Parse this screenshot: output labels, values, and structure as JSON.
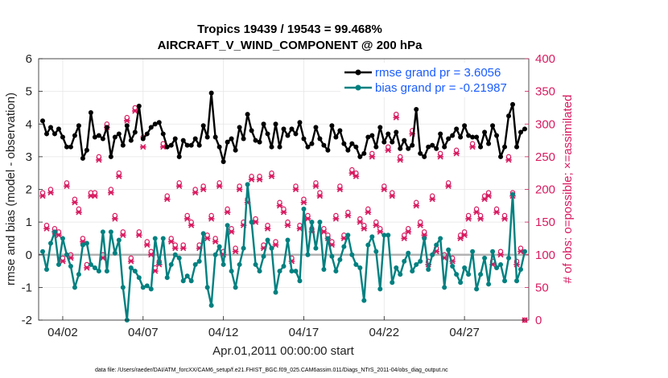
{
  "chart_data": {
    "type": "line",
    "title": "Tropics 19439 / 19543 = 99.468%",
    "subtitle": "AIRCRAFT_V_WIND_COMPONENT @ 200 hPa",
    "xlabel": "Apr.01,2011 00:00:00 start",
    "ylabel": "rmse and bias (model - observation)",
    "ylabel_right": "# of obs: o=possible; ×=assimilated",
    "ylim": [
      -2,
      6
    ],
    "ylim_right": [
      0,
      400
    ],
    "xlim": [
      0.5,
      31.0
    ],
    "yticks": [
      "-2",
      "-1",
      "0",
      "1",
      "2",
      "3",
      "4",
      "5",
      "6"
    ],
    "yticks_right": [
      "0",
      "50",
      "100",
      "150",
      "200",
      "250",
      "300",
      "350",
      "400"
    ],
    "xticks": [
      {
        "value": 2,
        "label": "04/02"
      },
      {
        "value": 7,
        "label": "04/07"
      },
      {
        "value": 12,
        "label": "04/12"
      },
      {
        "value": 17,
        "label": "04/17"
      },
      {
        "value": 22,
        "label": "04/22"
      },
      {
        "value": 27,
        "label": "04/27"
      }
    ],
    "legend": {
      "placement": "top-right",
      "entries": [
        "rmse grand pr = 3.6056",
        "bias grand pr = -0.21987"
      ]
    },
    "footer": "data file: /Users/raeder/DAI/ATM_forcXX/CAM6_setup/f.e21.FHIST_BGC.f09_025.CAM6assim.011/Diags_NTrS_2011-04/obs_diag_output.nc",
    "colors": {
      "rmse": "#000000",
      "bias": "#008080",
      "obs": "#d81b60",
      "zero_line": "#b3b3b3"
    },
    "series": [
      {
        "name": "rmse",
        "x": [
          0.75,
          1.0,
          1.25,
          1.5,
          1.75,
          2.0,
          2.25,
          2.5,
          2.75,
          3.0,
          3.25,
          3.5,
          3.75,
          4.0,
          4.25,
          4.5,
          4.75,
          5.0,
          5.25,
          5.5,
          5.75,
          6.0,
          6.25,
          6.5,
          6.75,
          7.0,
          7.25,
          7.5,
          7.75,
          8.0,
          8.25,
          8.5,
          8.75,
          9.0,
          9.25,
          9.5,
          9.75,
          10.0,
          10.25,
          10.5,
          10.75,
          11.0,
          11.25,
          11.5,
          11.75,
          12.0,
          12.25,
          12.5,
          12.75,
          13.0,
          13.25,
          13.5,
          13.75,
          14.0,
          14.25,
          14.5,
          14.75,
          15.0,
          15.25,
          15.5,
          15.75,
          16.0,
          16.25,
          16.5,
          16.75,
          17.0,
          17.25,
          17.5,
          17.75,
          18.0,
          18.25,
          18.5,
          18.75,
          19.0,
          19.25,
          19.5,
          19.75,
          20.0,
          20.25,
          20.5,
          20.75,
          21.0,
          21.25,
          21.5,
          21.75,
          22.0,
          22.25,
          22.5,
          22.75,
          23.0,
          23.25,
          23.5,
          23.75,
          24.0,
          24.25,
          24.5,
          24.75,
          25.0,
          25.25,
          25.5,
          25.75,
          26.0,
          26.25,
          26.5,
          26.75,
          27.0,
          27.25,
          27.5,
          27.75,
          28.0,
          28.25,
          28.5,
          28.75,
          29.0,
          29.25,
          29.5,
          29.75,
          30.0,
          30.25,
          30.5,
          30.75
        ],
        "values": [
          4.1,
          3.7,
          3.9,
          3.7,
          3.85,
          3.6,
          3.3,
          3.3,
          3.65,
          3.95,
          2.95,
          3.2,
          4.35,
          3.6,
          3.65,
          3.55,
          3.9,
          3.0,
          3.6,
          3.7,
          3.35,
          3.95,
          3.5,
          3.75,
          4.55,
          3.55,
          3.7,
          3.9,
          4.0,
          4.05,
          3.7,
          3.3,
          3.35,
          3.55,
          3.0,
          3.5,
          3.35,
          3.35,
          3.55,
          3.35,
          3.95,
          3.6,
          4.95,
          3.6,
          3.3,
          2.85,
          3.45,
          3.55,
          3.2,
          3.9,
          3.55,
          4.3,
          3.8,
          3.5,
          3.45,
          4.0,
          3.7,
          3.3,
          4.0,
          3.3,
          3.85,
          3.65,
          3.85,
          3.7,
          4.05,
          3.55,
          3.3,
          3.4,
          3.9,
          3.55,
          3.35,
          3.2,
          3.95,
          3.6,
          3.8,
          3.4,
          3.2,
          3.4,
          3.3,
          3.0,
          3.1,
          3.6,
          3.65,
          3.3,
          3.9,
          3.45,
          3.7,
          3.45,
          3.75,
          3.25,
          3.5,
          3.25,
          3.35,
          4.45,
          3.1,
          3.0,
          3.3,
          3.35,
          3.25,
          3.7,
          3.3,
          3.55,
          3.65,
          3.85,
          3.6,
          3.95,
          3.65,
          3.6,
          3.6,
          3.3,
          3.75,
          3.4,
          3.95,
          3.65,
          3.0,
          3.3,
          4.25,
          4.6,
          3.3,
          3.75,
          3.85
        ]
      },
      {
        "name": "bias",
        "x": [
          0.75,
          1.0,
          1.25,
          1.5,
          1.75,
          2.0,
          2.25,
          2.5,
          2.75,
          3.0,
          3.25,
          3.5,
          3.75,
          4.0,
          4.25,
          4.5,
          4.75,
          5.0,
          5.25,
          5.5,
          5.75,
          6.0,
          6.25,
          6.5,
          6.75,
          7.0,
          7.25,
          7.5,
          7.75,
          8.0,
          8.25,
          8.5,
          8.75,
          9.0,
          9.25,
          9.5,
          9.75,
          10.0,
          10.25,
          10.5,
          10.75,
          11.0,
          11.25,
          11.5,
          11.75,
          12.0,
          12.25,
          12.5,
          12.75,
          13.0,
          13.25,
          13.5,
          13.75,
          14.0,
          14.25,
          14.5,
          14.75,
          15.0,
          15.25,
          15.5,
          15.75,
          16.0,
          16.25,
          16.5,
          16.75,
          17.0,
          17.25,
          17.5,
          17.75,
          18.0,
          18.25,
          18.5,
          18.75,
          19.0,
          19.25,
          19.5,
          19.75,
          20.0,
          20.25,
          20.5,
          20.75,
          21.0,
          21.25,
          21.5,
          21.75,
          22.0,
          22.25,
          22.5,
          22.75,
          23.0,
          23.25,
          23.5,
          23.75,
          24.0,
          24.25,
          24.5,
          24.75,
          25.0,
          25.25,
          25.5,
          25.75,
          26.0,
          26.25,
          26.5,
          26.75,
          27.0,
          27.25,
          27.5,
          27.75,
          28.0,
          28.25,
          28.5,
          28.75,
          29.0,
          29.25,
          29.5,
          29.75,
          30.0,
          30.25,
          30.5,
          30.75
        ],
        "values": [
          0.1,
          -0.45,
          0.35,
          0.7,
          -0.3,
          0.5,
          0.0,
          -0.35,
          -1.0,
          -0.6,
          0.3,
          0.35,
          -0.3,
          -0.4,
          -0.5,
          0.7,
          -0.5,
          0.7,
          0.05,
          0.45,
          -1.0,
          -2.0,
          -0.4,
          -0.5,
          -0.7,
          -1.0,
          -0.95,
          -1.05,
          0.5,
          -0.25,
          0.5,
          -0.7,
          -0.3,
          0.0,
          -0.1,
          -0.8,
          -0.65,
          -0.8,
          -0.3,
          -0.2,
          0.65,
          -1.0,
          -1.55,
          0.0,
          0.25,
          -0.3,
          0.9,
          -0.5,
          -1.0,
          -0.3,
          0.2,
          2.15,
          1.0,
          -0.3,
          -0.5,
          -0.05,
          0.45,
          0.2,
          -1.15,
          -0.5,
          -0.35,
          0.45,
          -0.5,
          -0.5,
          -0.8,
          1.4,
          0.0,
          1.0,
          0.2,
          1.0,
          -0.45,
          0.5,
          -0.05,
          -0.5,
          -0.15,
          0.25,
          0.6,
          0.0,
          -0.3,
          -0.4,
          -1.4,
          0.3,
          0.55,
          0.1,
          -1.05,
          0.6,
          0.6,
          -0.85,
          -0.4,
          -0.6,
          -0.2,
          0.05,
          -0.5,
          -0.3,
          -0.2,
          0.5,
          -0.45,
          0.0,
          0.3,
          0.5,
          -1.0,
          0.15,
          -0.35,
          -0.6,
          -0.85,
          -0.4,
          -0.6,
          0.1,
          -1.05,
          -0.6,
          -0.1,
          -0.9,
          0.1,
          -0.4,
          -0.3,
          -0.8,
          -0.1,
          1.85,
          -0.8,
          -0.45,
          0.1
        ]
      },
      {
        "name": "obs_possible",
        "x": [
          0.75,
          1.0,
          1.25,
          1.5,
          1.75,
          2.0,
          2.25,
          2.5,
          2.75,
          3.0,
          3.25,
          3.5,
          3.75,
          4.0,
          4.25,
          4.5,
          4.75,
          5.0,
          5.25,
          5.5,
          5.75,
          6.0,
          6.25,
          6.5,
          6.75,
          7.0,
          7.25,
          7.5,
          7.75,
          8.0,
          8.25,
          8.5,
          8.75,
          9.0,
          9.25,
          9.5,
          9.75,
          10.0,
          10.25,
          10.5,
          10.75,
          11.0,
          11.25,
          11.5,
          11.75,
          12.0,
          12.25,
          12.5,
          12.75,
          13.0,
          13.25,
          13.5,
          13.75,
          14.0,
          14.25,
          14.5,
          14.75,
          15.0,
          15.25,
          15.5,
          15.75,
          16.0,
          16.25,
          16.5,
          16.75,
          17.0,
          17.25,
          17.5,
          17.75,
          18.0,
          18.25,
          18.5,
          18.75,
          19.0,
          19.25,
          19.5,
          19.75,
          20.0,
          20.25,
          20.5,
          20.75,
          21.0,
          21.25,
          21.5,
          21.75,
          22.0,
          22.25,
          22.5,
          22.75,
          23.0,
          23.25,
          23.5,
          23.75,
          24.0,
          24.25,
          24.5,
          24.75,
          25.0,
          25.25,
          25.5,
          25.75,
          26.0,
          26.25,
          26.5,
          26.75,
          27.0,
          27.25,
          27.5,
          27.75,
          28.0,
          28.25,
          28.5,
          28.75,
          29.0,
          29.25,
          29.5,
          29.75,
          30.0,
          30.25,
          30.5,
          30.75
        ],
        "values": [
          195,
          145,
          200,
          140,
          135,
          95,
          210,
          100,
          185,
          170,
          125,
          85,
          195,
          195,
          250,
          100,
          300,
          200,
          160,
          225,
          135,
          310,
          95,
          325,
          135,
          280,
          120,
          105,
          80,
          90,
          270,
          190,
          125,
          115,
          210,
          115,
          160,
          150,
          200,
          115,
          205,
          130,
          160,
          125,
          210,
          105,
          170,
          140,
          110,
          205,
          150,
          185,
          220,
          155,
          220,
          115,
          145,
          225,
          120,
          180,
          170,
          150,
          95,
          205,
          145,
          185,
          160,
          140,
          210,
          195,
          140,
          130,
          120,
          160,
          205,
          130,
          165,
          230,
          225,
          155,
          145,
          170,
          255,
          150,
          140,
          205,
          265,
          195,
          315,
          250,
          130,
          140,
          290,
          180,
          150,
          135,
          90,
          190,
          110,
          255,
          100,
          210,
          95,
          260,
          130,
          135,
          160,
          270,
          170,
          160,
          190,
          195,
          90,
          170,
          105,
          160,
          250,
          195,
          90,
          110,
          0
        ]
      },
      {
        "name": "obs_assimilated",
        "x": [
          0.75,
          1.0,
          1.25,
          1.5,
          1.75,
          2.0,
          2.25,
          2.5,
          2.75,
          3.0,
          3.25,
          3.5,
          3.75,
          4.0,
          4.25,
          4.5,
          4.75,
          5.0,
          5.25,
          5.5,
          5.75,
          6.0,
          6.25,
          6.5,
          6.75,
          7.0,
          7.25,
          7.5,
          7.75,
          8.0,
          8.25,
          8.5,
          8.75,
          9.0,
          9.25,
          9.5,
          9.75,
          10.0,
          10.25,
          10.5,
          10.75,
          11.0,
          11.25,
          11.5,
          11.75,
          12.0,
          12.25,
          12.5,
          12.75,
          13.0,
          13.25,
          13.5,
          13.75,
          14.0,
          14.25,
          14.5,
          14.75,
          15.0,
          15.25,
          15.5,
          15.75,
          16.0,
          16.25,
          16.5,
          16.75,
          17.0,
          17.25,
          17.5,
          17.75,
          18.0,
          18.25,
          18.5,
          18.75,
          19.0,
          19.25,
          19.5,
          19.75,
          20.0,
          20.25,
          20.5,
          20.75,
          21.0,
          21.25,
          21.5,
          21.75,
          22.0,
          22.25,
          22.5,
          22.75,
          23.0,
          23.25,
          23.5,
          23.75,
          24.0,
          24.25,
          24.5,
          24.75,
          25.0,
          25.25,
          25.5,
          25.75,
          26.0,
          26.25,
          26.5,
          26.75,
          27.0,
          27.25,
          27.5,
          27.75,
          28.0,
          28.25,
          28.5,
          28.75,
          29.0,
          29.25,
          29.5,
          29.75,
          30.0,
          30.25,
          30.5,
          30.75
        ],
        "values": [
          190,
          140,
          195,
          135,
          130,
          90,
          205,
          95,
          180,
          165,
          120,
          80,
          190,
          190,
          245,
          95,
          295,
          195,
          155,
          220,
          130,
          305,
          90,
          320,
          130,
          265,
          115,
          100,
          75,
          85,
          265,
          185,
          120,
          110,
          205,
          110,
          155,
          145,
          195,
          110,
          200,
          125,
          155,
          120,
          205,
          100,
          165,
          135,
          105,
          200,
          145,
          180,
          215,
          150,
          215,
          110,
          140,
          220,
          115,
          175,
          165,
          145,
          90,
          200,
          140,
          180,
          155,
          135,
          205,
          190,
          135,
          125,
          115,
          155,
          200,
          125,
          160,
          225,
          220,
          150,
          140,
          165,
          250,
          145,
          135,
          200,
          260,
          190,
          310,
          245,
          125,
          135,
          285,
          175,
          145,
          130,
          85,
          185,
          105,
          250,
          95,
          205,
          90,
          255,
          125,
          130,
          155,
          265,
          165,
          155,
          185,
          190,
          85,
          165,
          100,
          155,
          245,
          190,
          85,
          105,
          0
        ]
      }
    ]
  }
}
